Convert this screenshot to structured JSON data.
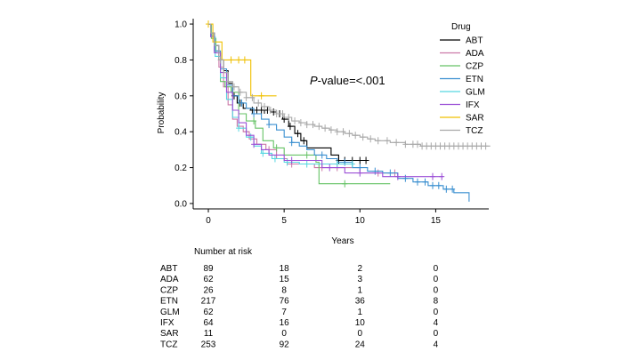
{
  "chart_data": {
    "type": "line",
    "subtype": "kaplan-meier",
    "title": "",
    "xlabel": "Years",
    "ylabel": "Probability",
    "xlim": [
      -1,
      18.5
    ],
    "ylim": [
      -0.03,
      1.03
    ],
    "x_ticks": [
      0,
      5,
      10,
      15
    ],
    "y_ticks": [
      0.0,
      0.2,
      0.4,
      0.6,
      0.8,
      1.0
    ],
    "x_tick_labels": [
      "0",
      "5",
      "10",
      "15"
    ],
    "y_tick_labels": [
      "0.0",
      "0.2",
      "0.4",
      "0.6",
      "0.8",
      "1.0"
    ],
    "grid": false,
    "legend_title": "Drug",
    "legend_position": "top-right",
    "annotation": {
      "italic": "P",
      "rest": "-value=<.001"
    },
    "series": [
      {
        "name": "ABT",
        "color": "#000000",
        "points": [
          [
            0,
            1
          ],
          [
            0.15,
            0.95
          ],
          [
            0.4,
            0.88
          ],
          [
            0.7,
            0.8
          ],
          [
            1.0,
            0.74
          ],
          [
            1.3,
            0.67
          ],
          [
            1.6,
            0.6
          ],
          [
            1.9,
            0.56
          ],
          [
            2.3,
            0.53
          ],
          [
            2.8,
            0.52
          ],
          [
            3.5,
            0.52
          ],
          [
            4.1,
            0.51
          ],
          [
            4.5,
            0.5
          ],
          [
            4.9,
            0.47
          ],
          [
            5.3,
            0.43
          ],
          [
            5.7,
            0.39
          ],
          [
            6.1,
            0.35
          ],
          [
            6.5,
            0.31
          ],
          [
            7.2,
            0.31
          ],
          [
            8.1,
            0.27
          ],
          [
            8.6,
            0.24
          ],
          [
            10.6,
            0.24
          ]
        ],
        "censor": [
          1.7,
          2.1,
          2.9,
          3.2,
          3.5,
          3.7,
          3.9,
          4.3,
          4.7,
          5.0,
          5.4,
          5.9,
          6.3,
          8.6,
          9.0,
          9.5,
          10.0,
          10.4
        ]
      },
      {
        "name": "ADA",
        "color": "#cc79a7",
        "points": [
          [
            0,
            1
          ],
          [
            0.15,
            0.93
          ],
          [
            0.4,
            0.85
          ],
          [
            0.7,
            0.76
          ],
          [
            1.0,
            0.65
          ],
          [
            1.3,
            0.55
          ],
          [
            1.6,
            0.47
          ],
          [
            1.9,
            0.43
          ],
          [
            2.3,
            0.4
          ],
          [
            2.7,
            0.36
          ],
          [
            3.2,
            0.33
          ],
          [
            3.8,
            0.3
          ],
          [
            4.5,
            0.25
          ],
          [
            5.2,
            0.22
          ],
          [
            6.0,
            0.22
          ],
          [
            7.0,
            0.2
          ],
          [
            8.0,
            0.2
          ],
          [
            9.0,
            0.2
          ],
          [
            10.0,
            0.17
          ],
          [
            11.0,
            0.17
          ],
          [
            12.5,
            0.17
          ]
        ],
        "censor": [
          2.5,
          4.0,
          5.5,
          7.5,
          8.5,
          11.2,
          12.3
        ]
      },
      {
        "name": "CZP",
        "color": "#66c266",
        "points": [
          [
            0,
            1
          ],
          [
            0.2,
            0.92
          ],
          [
            0.5,
            0.84
          ],
          [
            0.8,
            0.68
          ],
          [
            1.1,
            0.65
          ],
          [
            1.5,
            0.62
          ],
          [
            2.0,
            0.5
          ],
          [
            2.5,
            0.46
          ],
          [
            3.1,
            0.42
          ],
          [
            3.6,
            0.35
          ],
          [
            4.3,
            0.31
          ],
          [
            5.0,
            0.27
          ],
          [
            6.0,
            0.27
          ],
          [
            7.1,
            0.23
          ],
          [
            7.3,
            0.11
          ],
          [
            10.0,
            0.11
          ],
          [
            12.0,
            0.11
          ]
        ],
        "censor": [
          3.0,
          4.5,
          6.5,
          9.0
        ]
      },
      {
        "name": "ETN",
        "color": "#3a8fd0",
        "points": [
          [
            0,
            1
          ],
          [
            0.15,
            0.94
          ],
          [
            0.4,
            0.85
          ],
          [
            0.8,
            0.75
          ],
          [
            1.2,
            0.66
          ],
          [
            1.6,
            0.6
          ],
          [
            2.0,
            0.56
          ],
          [
            2.5,
            0.53
          ],
          [
            3.0,
            0.5
          ],
          [
            3.5,
            0.47
          ],
          [
            4.0,
            0.44
          ],
          [
            4.5,
            0.41
          ],
          [
            5.0,
            0.37
          ],
          [
            5.5,
            0.34
          ],
          [
            6.0,
            0.32
          ],
          [
            6.5,
            0.3
          ],
          [
            7.0,
            0.27
          ],
          [
            7.8,
            0.25
          ],
          [
            8.5,
            0.23
          ],
          [
            9.5,
            0.2
          ],
          [
            10.5,
            0.18
          ],
          [
            11.5,
            0.17
          ],
          [
            12.5,
            0.14
          ],
          [
            13.5,
            0.12
          ],
          [
            14.5,
            0.1
          ],
          [
            15.5,
            0.08
          ],
          [
            16.2,
            0.06
          ],
          [
            17.2,
            0.06
          ],
          [
            17.2,
            0.01
          ]
        ],
        "censor": [
          2.2,
          3.0,
          4.0,
          5.5,
          7.5,
          9.0,
          10.0,
          11.0,
          12.0,
          13.0,
          13.8,
          14.3,
          14.8,
          15.2,
          15.7,
          16.1
        ]
      },
      {
        "name": "GLM",
        "color": "#56d6e0",
        "points": [
          [
            0,
            1
          ],
          [
            0.15,
            0.93
          ],
          [
            0.45,
            0.82
          ],
          [
            0.8,
            0.7
          ],
          [
            1.2,
            0.58
          ],
          [
            1.6,
            0.48
          ],
          [
            2.0,
            0.42
          ],
          [
            2.5,
            0.37
          ],
          [
            3.0,
            0.32
          ],
          [
            3.5,
            0.28
          ],
          [
            4.2,
            0.25
          ],
          [
            5.0,
            0.23
          ],
          [
            6.0,
            0.22
          ],
          [
            7.5,
            0.22
          ],
          [
            9.5,
            0.22
          ]
        ],
        "censor": [
          2.0,
          2.8,
          3.6,
          4.4,
          5.2,
          6.5,
          8.5,
          9.5
        ]
      },
      {
        "name": "IFX",
        "color": "#9b4fd6",
        "points": [
          [
            0,
            1
          ],
          [
            0.15,
            0.93
          ],
          [
            0.4,
            0.84
          ],
          [
            0.8,
            0.73
          ],
          [
            1.2,
            0.62
          ],
          [
            1.6,
            0.52
          ],
          [
            2.0,
            0.45
          ],
          [
            2.5,
            0.38
          ],
          [
            3.0,
            0.33
          ],
          [
            3.5,
            0.3
          ],
          [
            4.0,
            0.27
          ],
          [
            5.0,
            0.24
          ],
          [
            6.0,
            0.24
          ],
          [
            7.5,
            0.2
          ],
          [
            9.0,
            0.17
          ],
          [
            10.5,
            0.17
          ],
          [
            11.5,
            0.15
          ],
          [
            13.0,
            0.15
          ],
          [
            15.5,
            0.15
          ]
        ],
        "censor": [
          3.0,
          5.5,
          8.0,
          10.0,
          12.5,
          14.8,
          15.4
        ]
      },
      {
        "name": "SAR",
        "color": "#f0c000",
        "points": [
          [
            0,
            1
          ],
          [
            0.3,
            0.9
          ],
          [
            0.9,
            0.8
          ],
          [
            2.8,
            0.8
          ],
          [
            2.8,
            0.6
          ],
          [
            4.5,
            0.6
          ]
        ],
        "censor": [
          0.0,
          1.5,
          2.0,
          2.4,
          3.5
        ]
      },
      {
        "name": "TCZ",
        "color": "#a8a8a8",
        "points": [
          [
            0,
            1
          ],
          [
            0.15,
            0.95
          ],
          [
            0.4,
            0.88
          ],
          [
            0.7,
            0.8
          ],
          [
            1.0,
            0.73
          ],
          [
            1.3,
            0.68
          ],
          [
            1.6,
            0.65
          ],
          [
            2.0,
            0.62
          ],
          [
            2.5,
            0.59
          ],
          [
            3.0,
            0.56
          ],
          [
            3.5,
            0.54
          ],
          [
            4.0,
            0.52
          ],
          [
            4.5,
            0.5
          ],
          [
            5.0,
            0.48
          ],
          [
            5.5,
            0.46
          ],
          [
            6.0,
            0.45
          ],
          [
            6.5,
            0.44
          ],
          [
            7.0,
            0.43
          ],
          [
            7.5,
            0.42
          ],
          [
            8.0,
            0.41
          ],
          [
            8.5,
            0.4
          ],
          [
            9.0,
            0.39
          ],
          [
            9.5,
            0.38
          ],
          [
            10.0,
            0.37
          ],
          [
            10.5,
            0.36
          ],
          [
            11.0,
            0.35
          ],
          [
            12.0,
            0.34
          ],
          [
            13.0,
            0.33
          ],
          [
            14.0,
            0.32
          ],
          [
            18.6,
            0.32
          ]
        ],
        "censor": [
          0.8,
          1.3,
          1.7,
          2.1,
          2.5,
          2.9,
          3.3,
          3.7,
          4.1,
          4.5,
          4.9,
          5.3,
          5.7,
          6.1,
          6.5,
          6.9,
          7.3,
          7.7,
          8.1,
          8.5,
          8.9,
          9.3,
          9.7,
          10.2,
          10.7,
          11.2,
          11.8,
          12.4,
          13.0,
          13.5,
          13.8,
          14.1,
          14.4,
          14.7,
          15.0,
          15.3,
          15.6,
          15.9,
          16.2,
          16.5,
          16.8,
          17.1,
          17.4,
          17.7,
          18.0,
          18.3
        ]
      }
    ],
    "number_at_risk": {
      "title": "Number at risk",
      "timepoints": [
        0,
        5,
        10,
        15
      ],
      "rows": [
        {
          "drug": "ABT",
          "values": [
            "89",
            "18",
            "2",
            "0"
          ]
        },
        {
          "drug": "ADA",
          "values": [
            "62",
            "15",
            "3",
            "0"
          ]
        },
        {
          "drug": "CZP",
          "values": [
            "26",
            "8",
            "1",
            "0"
          ]
        },
        {
          "drug": "ETN",
          "values": [
            "217",
            "76",
            "36",
            "8"
          ]
        },
        {
          "drug": "GLM",
          "values": [
            "62",
            "7",
            "1",
            "0"
          ]
        },
        {
          "drug": "IFX",
          "values": [
            "64",
            "16",
            "10",
            "4"
          ]
        },
        {
          "drug": "SAR",
          "values": [
            "11",
            "0",
            "0",
            "0"
          ]
        },
        {
          "drug": "TCZ",
          "values": [
            "253",
            "92",
            "24",
            "4"
          ]
        }
      ]
    }
  }
}
